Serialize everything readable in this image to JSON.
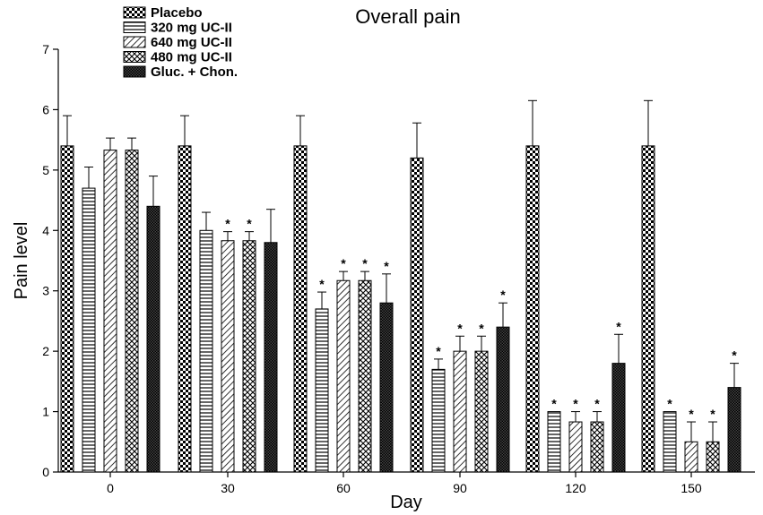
{
  "chart_data": {
    "type": "bar",
    "title": "Overall pain",
    "xlabel": "Day",
    "ylabel": "Pain level",
    "ylim": [
      0,
      7
    ],
    "yticks": [
      0,
      1,
      2,
      3,
      4,
      5,
      6,
      7
    ],
    "categories": [
      "0",
      "30",
      "60",
      "90",
      "120",
      "150"
    ],
    "legend_position": "top-left",
    "series": [
      {
        "name": "Placebo",
        "pattern": "checker",
        "values": [
          5.4,
          5.4,
          5.4,
          5.2,
          5.4,
          5.4
        ],
        "errors": [
          0.5,
          0.5,
          0.5,
          0.58,
          0.75,
          0.75
        ],
        "significant": [
          false,
          false,
          false,
          false,
          false,
          false
        ]
      },
      {
        "name": "320 mg UC-II",
        "pattern": "horizontal",
        "values": [
          4.7,
          4.0,
          2.7,
          1.7,
          1.0,
          1.0
        ],
        "errors": [
          0.35,
          0.3,
          0.28,
          0.17,
          0.0,
          0.0
        ],
        "significant": [
          false,
          false,
          true,
          true,
          true,
          true
        ]
      },
      {
        "name": "640 mg UC-II",
        "pattern": "diagonal",
        "values": [
          5.33,
          3.83,
          3.17,
          2.0,
          0.83,
          0.5
        ],
        "errors": [
          0.2,
          0.15,
          0.15,
          0.25,
          0.17,
          0.33
        ],
        "significant": [
          false,
          true,
          true,
          true,
          true,
          true
        ]
      },
      {
        "name": "480 mg UC-II",
        "pattern": "crosshatch",
        "values": [
          5.33,
          3.83,
          3.17,
          2.0,
          0.83,
          0.5
        ],
        "errors": [
          0.2,
          0.15,
          0.15,
          0.25,
          0.17,
          0.33
        ],
        "significant": [
          false,
          true,
          true,
          true,
          true,
          true
        ]
      },
      {
        "name": "Gluc. + Chon.",
        "pattern": "dense",
        "values": [
          4.4,
          3.8,
          2.8,
          2.4,
          1.8,
          1.4
        ],
        "errors": [
          0.5,
          0.55,
          0.48,
          0.4,
          0.48,
          0.4
        ],
        "significant": [
          false,
          false,
          true,
          true,
          true,
          true
        ]
      }
    ],
    "annotation_marker": "*"
  }
}
